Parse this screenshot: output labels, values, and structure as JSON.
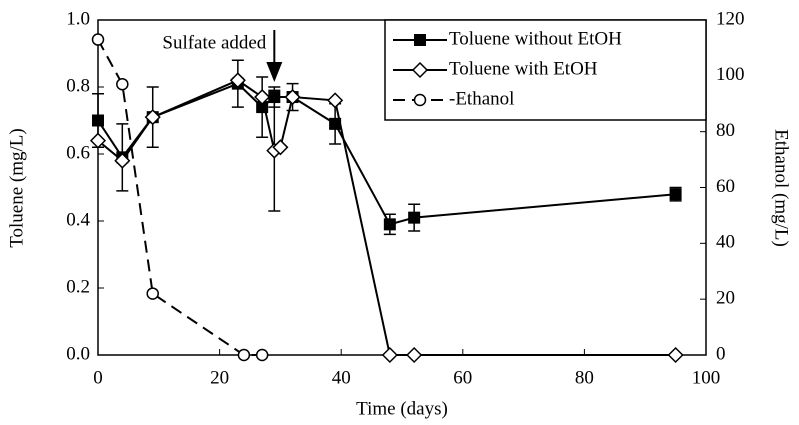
{
  "chart_data": {
    "type": "line",
    "xlabel": "Time (days)",
    "ylabel": "Toluene (mg/L)",
    "y2label": "Ethanol (mg/L)",
    "xlim": [
      0,
      100
    ],
    "xticks": [
      0,
      20,
      40,
      60,
      80,
      100
    ],
    "ylim": [
      0,
      1
    ],
    "yticks": [
      {
        "value": 0,
        "label": "0.0"
      },
      0.2,
      0.4,
      0.6,
      0.8,
      {
        "value": 1,
        "label": "1.0"
      }
    ],
    "y2lim": [
      0,
      120
    ],
    "y2ticks": [
      0,
      20,
      40,
      60,
      80,
      100,
      120
    ],
    "legend": "top-right",
    "annotation": {
      "text": "Sulfate added",
      "x": 29
    },
    "series": [
      {
        "name": "Toluene without EtOH",
        "color": "#000000",
        "marker": "square",
        "dashed": false,
        "x": [
          0,
          4,
          9,
          23,
          27,
          29,
          32,
          39,
          48,
          52,
          95
        ],
        "values": [
          0.7,
          0.59,
          0.71,
          0.81,
          0.74,
          0.77,
          0.77,
          0.69,
          0.39,
          0.41,
          0.48
        ],
        "errors": [
          0.08,
          0.1,
          0.09,
          0.07,
          0.09,
          0.03,
          0.04,
          0.06,
          0.03,
          0.04,
          0.02
        ]
      },
      {
        "name": "Toluene with EtOH",
        "color": "#000000",
        "marker": "diamond",
        "dashed": false,
        "x": [
          0,
          4,
          9,
          23,
          27,
          29,
          30,
          32,
          39,
          48,
          52,
          95
        ],
        "values": [
          0.64,
          0.58,
          0.71,
          0.82,
          0.77,
          0.61,
          0.62,
          0.77,
          0.76,
          0,
          0,
          0
        ],
        "errors": [
          null,
          null,
          null,
          null,
          null,
          0.18,
          null,
          null,
          null,
          null,
          null,
          null
        ]
      },
      {
        "name": "-Ethanol",
        "color": "#000000",
        "marker": "circle",
        "dashed": true,
        "axis": "y2",
        "x": [
          0,
          4,
          9,
          24,
          27
        ],
        "values": [
          113,
          97,
          22,
          0,
          0
        ]
      }
    ]
  }
}
